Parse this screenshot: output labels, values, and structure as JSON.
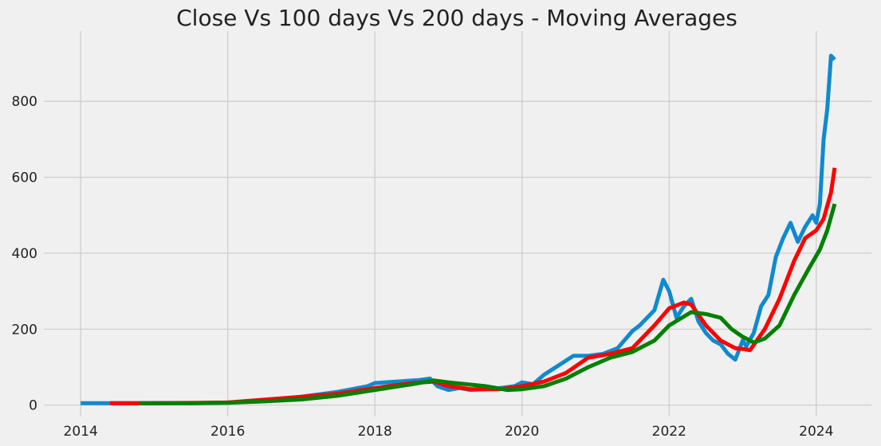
{
  "chart_data": {
    "type": "line",
    "title": "Close Vs 100 days Vs 200 days - Moving Averages",
    "xlabel": "",
    "ylabel": "",
    "xlim": [
      2013.5,
      2024.75
    ],
    "ylim": [
      -30,
      985
    ],
    "x_ticks": [
      "2014",
      "2016",
      "2018",
      "2020",
      "2022",
      "2024"
    ],
    "y_ticks": [
      "0",
      "200",
      "400",
      "600",
      "800"
    ],
    "grid": true,
    "series": [
      {
        "name": "",
        "color": "#0f8ad0",
        "stroke": 5,
        "x": [
          2014.0,
          2014.5,
          2015.0,
          2015.5,
          2016.0,
          2016.5,
          2017.0,
          2017.5,
          2017.9,
          2018.0,
          2018.3,
          2018.6,
          2018.75,
          2018.85,
          2019.0,
          2019.15,
          2019.3,
          2019.5,
          2019.7,
          2019.9,
          2020.0,
          2020.15,
          2020.3,
          2020.5,
          2020.7,
          2020.9,
          2021.1,
          2021.3,
          2021.5,
          2021.6,
          2021.8,
          2021.92,
          2022.0,
          2022.1,
          2022.2,
          2022.3,
          2022.4,
          2022.5,
          2022.6,
          2022.7,
          2022.8,
          2022.9,
          2023.0,
          2023.05,
          2023.15,
          2023.25,
          2023.35,
          2023.45,
          2023.55,
          2023.65,
          2023.75,
          2023.85,
          2023.95,
          2024.0,
          2024.05,
          2024.1,
          2024.15,
          2024.2,
          2024.25
        ],
        "y": [
          5,
          5,
          5,
          5,
          7,
          10,
          22,
          35,
          50,
          58,
          62,
          66,
          70,
          50,
          40,
          45,
          40,
          42,
          45,
          50,
          60,
          55,
          80,
          105,
          130,
          130,
          135,
          150,
          195,
          210,
          250,
          330,
          300,
          230,
          260,
          280,
          220,
          190,
          170,
          160,
          135,
          120,
          170,
          155,
          190,
          260,
          290,
          390,
          440,
          480,
          430,
          470,
          500,
          480,
          530,
          700,
          780,
          920,
          910
        ]
      },
      {
        "name": "",
        "color": "#ff0000",
        "stroke": 5,
        "x": [
          2014.4,
          2015.0,
          2016.0,
          2017.0,
          2017.5,
          2018.0,
          2018.5,
          2018.8,
          2019.0,
          2019.3,
          2019.7,
          2020.0,
          2020.3,
          2020.6,
          2020.9,
          2021.2,
          2021.5,
          2021.8,
          2022.0,
          2022.2,
          2022.3,
          2022.5,
          2022.7,
          2022.9,
          2023.0,
          2023.1,
          2023.3,
          2023.5,
          2023.7,
          2023.85,
          2024.0,
          2024.1,
          2024.2,
          2024.25
        ],
        "y": [
          5,
          5,
          7,
          22,
          30,
          45,
          58,
          62,
          50,
          42,
          42,
          50,
          62,
          85,
          125,
          135,
          150,
          210,
          255,
          270,
          265,
          210,
          170,
          150,
          148,
          145,
          200,
          280,
          380,
          440,
          460,
          490,
          560,
          625
        ]
      },
      {
        "name": "",
        "color": "#008000",
        "stroke": 5,
        "x": [
          2014.8,
          2015.5,
          2016.0,
          2016.5,
          2017.0,
          2017.5,
          2018.0,
          2018.5,
          2018.8,
          2019.0,
          2019.5,
          2019.8,
          2020.0,
          2020.3,
          2020.6,
          2020.9,
          2021.2,
          2021.5,
          2021.8,
          2022.0,
          2022.3,
          2022.5,
          2022.7,
          2022.85,
          2023.0,
          2023.15,
          2023.3,
          2023.5,
          2023.7,
          2023.9,
          2024.05,
          2024.15,
          2024.25
        ],
        "y": [
          5,
          5,
          6,
          10,
          15,
          25,
          40,
          55,
          65,
          60,
          50,
          40,
          42,
          50,
          70,
          100,
          125,
          140,
          170,
          210,
          245,
          240,
          230,
          200,
          180,
          165,
          175,
          210,
          290,
          360,
          410,
          460,
          530
        ]
      }
    ]
  }
}
